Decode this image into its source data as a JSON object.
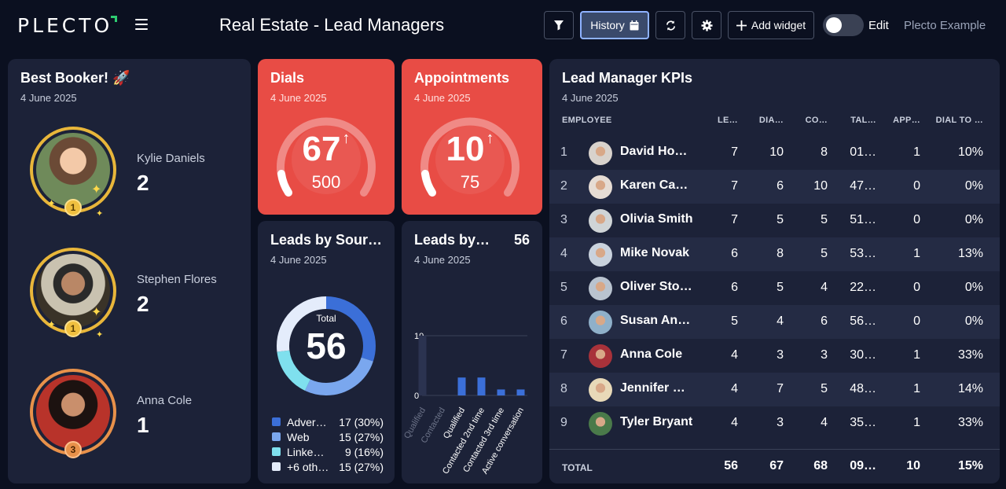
{
  "header": {
    "logo": "PLECTO",
    "title": "Real Estate - Lead Managers",
    "history_label": "History",
    "add_widget_label": "Add widget",
    "edit_label": "Edit",
    "account_label": "Plecto Example",
    "edit_toggle_on": false
  },
  "best_booker": {
    "title": "Best Booker! 🚀",
    "date": "4 June 2025",
    "people": [
      {
        "name": "Kylie Daniels",
        "score": "2",
        "rank": "1"
      },
      {
        "name": "Stephen Flores",
        "score": "2",
        "rank": "1"
      },
      {
        "name": "Anna Cole",
        "score": "1",
        "rank": "3"
      }
    ]
  },
  "dials": {
    "title": "Dials",
    "date": "4 June 2025",
    "value": "67",
    "target": "500",
    "trend": "↑"
  },
  "appointments": {
    "title": "Appointments",
    "date": "4 June 2025",
    "value": "10",
    "target": "75",
    "trend": "↑"
  },
  "leads_by_source": {
    "title": "Leads by Sour…",
    "date": "4 June 2025",
    "total_label": "Total",
    "total": "56",
    "legend": [
      {
        "name": "Adver…",
        "value": "17 (30%)",
        "color": "#3b6fd8"
      },
      {
        "name": "Web",
        "value": "15 (27%)",
        "color": "#7aa7ee"
      },
      {
        "name": "Linke…",
        "value": "9 (16%)",
        "color": "#7fe0ee"
      },
      {
        "name": "+6 oth…",
        "value": "15 (27%)",
        "color": "#e4ecfb"
      }
    ]
  },
  "leads_by_status": {
    "title": "Leads by…",
    "date": "4 June 2025",
    "total": "56"
  },
  "chart_data": {
    "type": "bar",
    "title": "Leads by…",
    "categories": [
      "Qualified",
      "Contacted",
      "Qualified",
      "Contacted 2nd time",
      "Contacted 3rd time",
      "Active conversation"
    ],
    "values": [
      10,
      0,
      3,
      3,
      1,
      1
    ],
    "ylim": [
      0,
      10
    ],
    "y_ticks": [
      "0",
      "10"
    ],
    "color": "#3b6fd8"
  },
  "kpi": {
    "title": "Lead Manager KPIs",
    "date": "4 June 2025",
    "columns": [
      "EMPLOYEE",
      "LE…",
      "DIA…",
      "CO…",
      "TAL…",
      "APP…",
      "DIAL TO …"
    ],
    "rows": [
      {
        "rank": "1",
        "name": "David Ho…",
        "v": [
          "7",
          "10",
          "8",
          "01…",
          "1",
          "10%"
        ]
      },
      {
        "rank": "2",
        "name": "Karen Ca…",
        "v": [
          "7",
          "6",
          "10",
          "47…",
          "0",
          "0%"
        ]
      },
      {
        "rank": "3",
        "name": "Olivia Smith",
        "v": [
          "7",
          "5",
          "5",
          "51…",
          "0",
          "0%"
        ]
      },
      {
        "rank": "4",
        "name": "Mike Novak",
        "v": [
          "6",
          "8",
          "5",
          "53…",
          "1",
          "13%"
        ]
      },
      {
        "rank": "5",
        "name": "Oliver Sto…",
        "v": [
          "6",
          "5",
          "4",
          "22…",
          "0",
          "0%"
        ]
      },
      {
        "rank": "6",
        "name": "Susan An…",
        "v": [
          "5",
          "4",
          "6",
          "56…",
          "0",
          "0%"
        ]
      },
      {
        "rank": "7",
        "name": "Anna Cole",
        "v": [
          "4",
          "3",
          "3",
          "30…",
          "1",
          "33%"
        ]
      },
      {
        "rank": "8",
        "name": "Jennifer …",
        "v": [
          "4",
          "7",
          "5",
          "48…",
          "1",
          "14%"
        ]
      },
      {
        "rank": "9",
        "name": "Tyler Bryant",
        "v": [
          "4",
          "3",
          "4",
          "35…",
          "1",
          "33%"
        ]
      }
    ],
    "total_label": "TOTAL",
    "totals": [
      "56",
      "67",
      "68",
      "09…",
      "10",
      "15%"
    ]
  }
}
